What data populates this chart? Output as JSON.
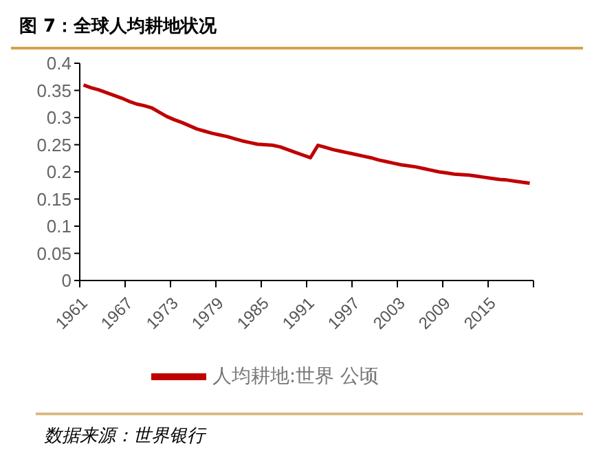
{
  "chart_data": {
    "type": "line",
    "title": "图 7：全球人均耕地状况",
    "annotations": [
      "数据来源：世界银行"
    ],
    "categories": [
      "1961",
      null,
      null,
      null,
      null,
      null,
      "1967",
      null,
      null,
      null,
      null,
      null,
      "1973",
      null,
      null,
      null,
      null,
      null,
      "1979",
      null,
      null,
      null,
      null,
      null,
      "1985",
      null,
      null,
      null,
      null,
      null,
      "1991",
      null,
      null,
      null,
      null,
      null,
      "1997",
      null,
      null,
      null,
      null,
      null,
      "2003",
      null,
      null,
      null,
      null,
      null,
      "2009",
      null,
      null,
      null,
      null,
      null,
      "2015",
      null,
      null,
      null,
      null,
      null
    ],
    "series": [
      {
        "name": "人均耕地:世界  公顷",
        "color": "#c00000",
        "values": [
          0.36,
          0.355,
          0.351,
          0.346,
          0.341,
          0.336,
          0.33,
          0.325,
          0.322,
          0.318,
          0.31,
          0.302,
          0.296,
          0.291,
          0.285,
          0.279,
          0.275,
          0.271,
          0.268,
          0.265,
          0.261,
          0.257,
          0.254,
          0.251,
          0.25,
          0.249,
          0.246,
          0.241,
          0.236,
          0.231,
          0.226,
          0.249,
          0.245,
          0.241,
          0.238,
          0.235,
          0.232,
          0.229,
          0.226,
          0.222,
          0.219,
          0.216,
          0.213,
          0.211,
          0.209,
          0.206,
          0.203,
          0.2,
          0.198,
          0.196,
          0.195,
          0.194,
          0.192,
          0.19,
          0.188,
          0.186,
          0.185,
          0.183,
          0.181,
          0.179
        ]
      }
    ],
    "ylim": [
      0,
      0.4
    ],
    "yticks": [
      0,
      0.05,
      0.1,
      0.15,
      0.2,
      0.25,
      0.3,
      0.35,
      0.4
    ],
    "grid": false,
    "legend": "bottom",
    "marker": "none",
    "line_style": "solid"
  }
}
